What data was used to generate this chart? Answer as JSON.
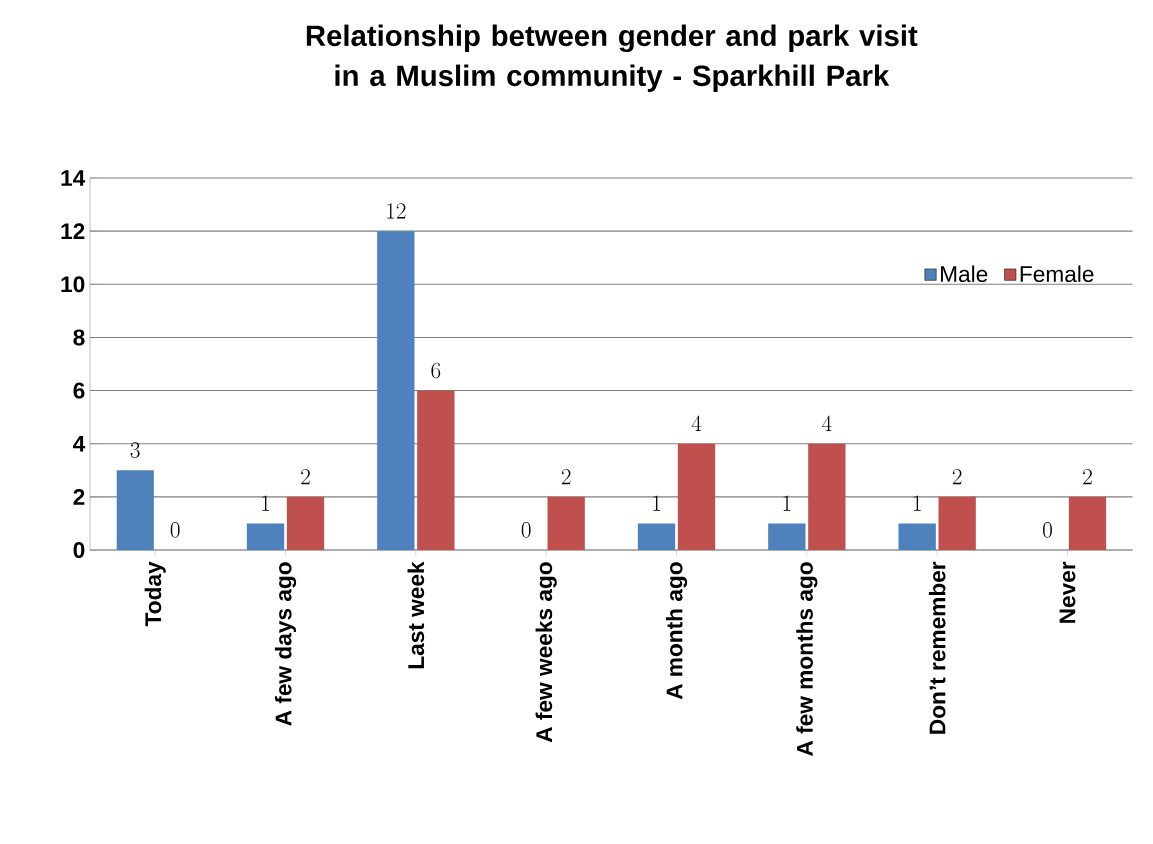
{
  "chart_data": {
    "type": "bar",
    "title": "Relationship between gender and park visit in a Muslim community  - Sparkhill Park",
    "categories": [
      "Today",
      "A few days ago",
      "Last week",
      "A few weeks ago",
      "A month ago",
      "A few months ago",
      "Don’t remember",
      "Never"
    ],
    "series": [
      {
        "name": "Male",
        "color": "#4f81bd",
        "values": [
          3,
          1,
          12,
          0,
          1,
          1,
          1,
          0
        ]
      },
      {
        "name": "Female",
        "color": "#c0504d",
        "values": [
          0,
          2,
          6,
          2,
          4,
          4,
          2,
          2
        ]
      }
    ],
    "ylim": [
      0,
      14
    ],
    "yticks": [
      0,
      2,
      4,
      6,
      8,
      10,
      12,
      14
    ],
    "grid": "y",
    "legend": "top right",
    "data_labels": true
  }
}
